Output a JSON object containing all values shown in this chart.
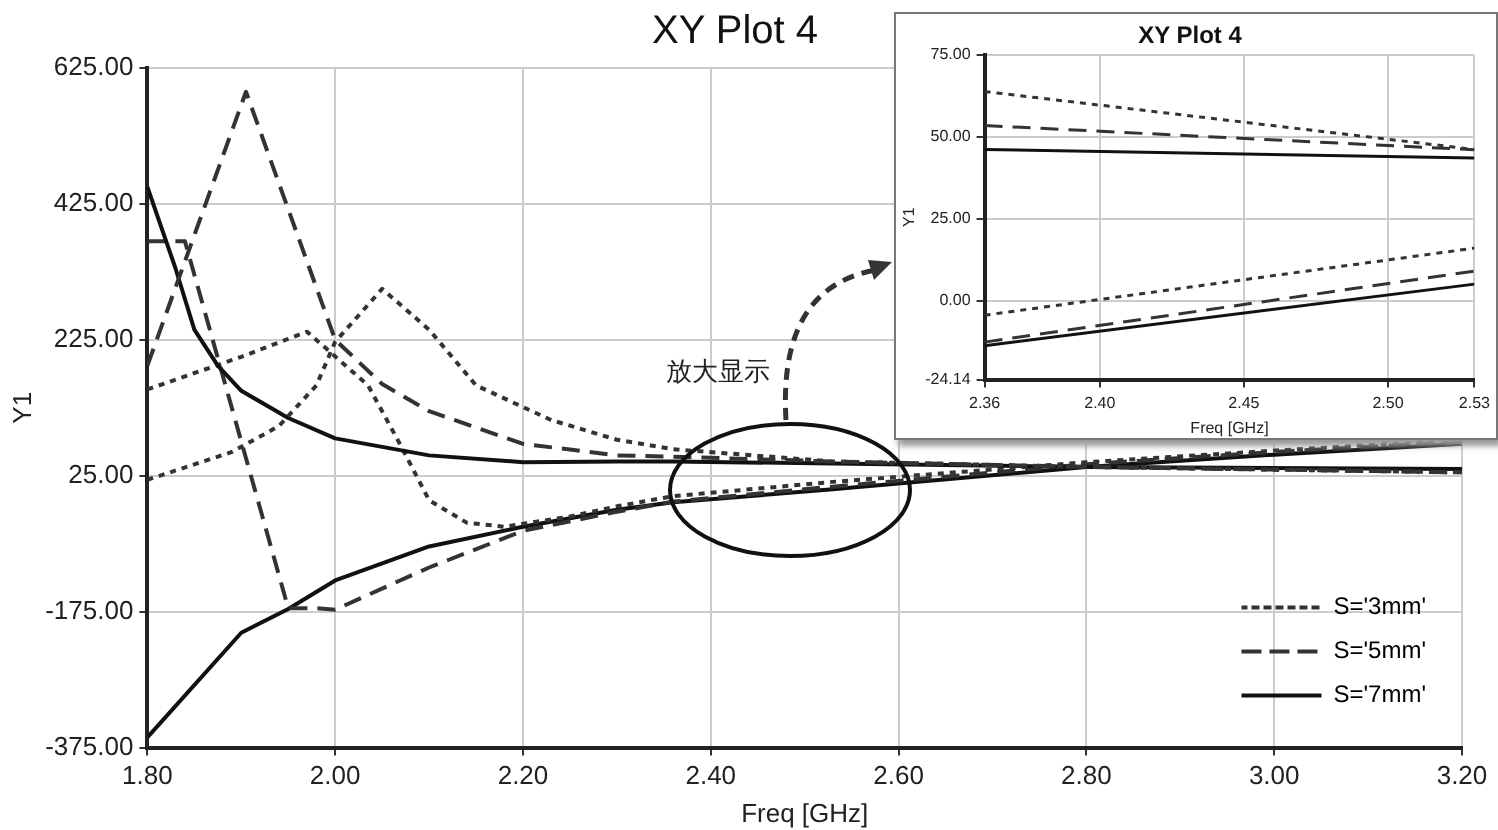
{
  "chart_data": [
    {
      "type": "line",
      "title": "XY Plot 4",
      "xlabel": "Freq [GHz]",
      "ylabel": "Y1",
      "annotations": [
        "放大显示"
      ],
      "xlim": [
        1.8,
        3.2
      ],
      "xticks": [
        {
          "value": 1.8,
          "label": "1.80"
        },
        {
          "value": 2.0,
          "label": "2.00"
        },
        {
          "value": 2.2,
          "label": "2.20"
        },
        {
          "value": 2.4,
          "label": "2.40"
        },
        {
          "value": 2.6,
          "label": "2.60"
        },
        {
          "value": 2.8,
          "label": "2.80"
        },
        {
          "value": 3.0,
          "label": "3.00"
        },
        {
          "value": 3.2,
          "label": "3.20"
        }
      ],
      "ylim": [
        -375,
        625
      ],
      "yticks": [
        {
          "value": -375,
          "label": "-375.00"
        },
        {
          "value": -175,
          "label": "-175.00"
        },
        {
          "value": 25,
          "label": "25.00"
        },
        {
          "value": 225,
          "label": "225.00"
        },
        {
          "value": 425,
          "label": "425.00"
        },
        {
          "value": 625,
          "label": "625.00"
        }
      ],
      "grid": true,
      "legend": "bottom right",
      "marker": "none",
      "series": [
        {
          "name": "S='3mm'",
          "color": "#333333",
          "line_style": "dotted",
          "x": [
            1.8,
            1.89,
            1.94,
            1.98,
            2.0,
            2.05,
            2.1,
            2.15,
            2.23,
            2.3,
            2.36,
            2.53,
            2.8,
            3.2
          ],
          "values": [
            19,
            60,
            98,
            158,
            222,
            300,
            240,
            158,
            107,
            78,
            64,
            46,
            38,
            30
          ]
        },
        {
          "name": "S='5mm'",
          "color": "#333333",
          "line_style": "dashed",
          "x": [
            1.8,
            1.905,
            2.0,
            2.05,
            2.1,
            2.2,
            2.3,
            2.36,
            2.53,
            2.8,
            3.2
          ],
          "values": [
            187,
            590,
            225,
            160,
            120,
            72,
            55,
            53,
            46,
            38,
            30
          ]
        },
        {
          "name": "S='7mm'",
          "color": "#111111",
          "line_style": "solid",
          "x": [
            1.8,
            1.83,
            1.85,
            1.875,
            1.9,
            1.95,
            2.0,
            2.1,
            2.2,
            2.3,
            2.36,
            2.53,
            2.8,
            3.2
          ],
          "values": [
            450,
            330,
            240,
            187,
            150,
            110,
            80,
            55,
            45,
            46,
            46,
            43,
            38,
            35
          ]
        },
        {
          "color": "#333333",
          "line_style": "dotted",
          "x": [
            1.8,
            1.9,
            1.97,
            2.035,
            2.07,
            2.1,
            2.14,
            2.18,
            2.25,
            2.3,
            2.36,
            2.53,
            2.8,
            3.0,
            3.2
          ],
          "values": [
            152,
            200,
            237,
            158,
            69,
            -11,
            -44,
            -50,
            -35,
            -20,
            -5,
            16,
            45,
            62,
            78
          ]
        },
        {
          "color": "#333333",
          "line_style": "dashed",
          "x": [
            1.8,
            1.84,
            1.95,
            1.98,
            2.0,
            2.1,
            2.2,
            2.3,
            2.36,
            2.53,
            2.8,
            3.0,
            3.2
          ],
          "values": [
            370,
            370,
            -170,
            -170,
            -172,
            -110,
            -56,
            -28,
            -13,
            9,
            42,
            60,
            75
          ]
        },
        {
          "color": "#111111",
          "line_style": "solid",
          "x": [
            1.8,
            1.9,
            1.95,
            2.0,
            2.1,
            2.2,
            2.3,
            2.36,
            2.53,
            2.8,
            3.0,
            3.2
          ],
          "values": [
            -360,
            -206,
            -171,
            -129,
            -79,
            -50,
            -25,
            -14,
            5,
            38,
            56,
            72
          ]
        }
      ]
    },
    {
      "type": "line",
      "title": "XY Plot 4",
      "xlabel": "Freq [GHz]",
      "ylabel": "Y1",
      "xlim": [
        2.36,
        2.53
      ],
      "xticks": [
        {
          "value": 2.36,
          "label": "2.36"
        },
        {
          "value": 2.4,
          "label": "2.40"
        },
        {
          "value": 2.45,
          "label": "2.45"
        },
        {
          "value": 2.5,
          "label": "2.50"
        },
        {
          "value": 2.53,
          "label": "2.53"
        }
      ],
      "ylim": [
        -24.14,
        75
      ],
      "yticks": [
        {
          "value": -24.14,
          "label": "-24.14"
        },
        {
          "value": 0,
          "label": "0.00"
        },
        {
          "value": 25,
          "label": "25.00"
        },
        {
          "value": 50,
          "label": "50.00"
        },
        {
          "value": 75,
          "label": "75.00"
        }
      ],
      "grid": true,
      "marker": "none",
      "series": [
        {
          "color": "#333333",
          "line_style": "dotted",
          "x": [
            2.36,
            2.53
          ],
          "values": [
            63.8,
            46.1
          ]
        },
        {
          "color": "#333333",
          "line_style": "dashed",
          "x": [
            2.36,
            2.53
          ],
          "values": [
            53.4,
            46
          ]
        },
        {
          "color": "#111111",
          "line_style": "solid",
          "x": [
            2.36,
            2.53
          ],
          "values": [
            46.1,
            43.5
          ]
        },
        {
          "color": "#333333",
          "line_style": "dotted",
          "x": [
            2.36,
            2.53
          ],
          "values": [
            -4.5,
            16
          ]
        },
        {
          "color": "#333333",
          "line_style": "dashed",
          "x": [
            2.36,
            2.53
          ],
          "values": [
            -12.7,
            9
          ]
        },
        {
          "color": "#111111",
          "line_style": "solid",
          "x": [
            2.36,
            2.53
          ],
          "values": [
            -13.8,
            5
          ]
        }
      ]
    }
  ]
}
